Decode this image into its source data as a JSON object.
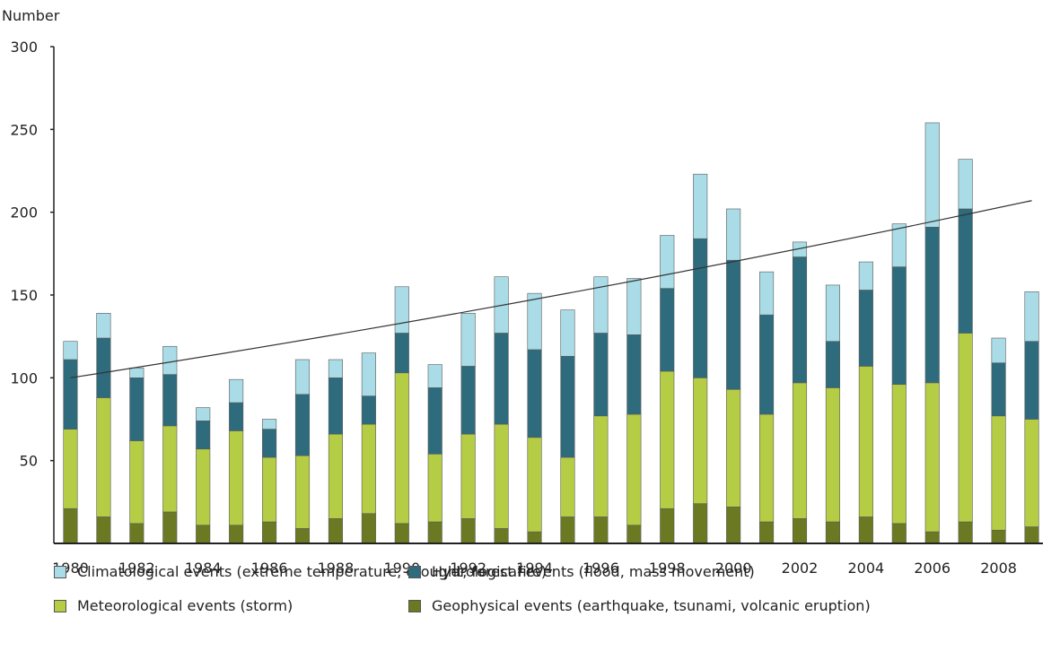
{
  "chart_data": {
    "type": "bar",
    "stacked": true,
    "ylabel": "Number",
    "ylim": [
      0,
      300
    ],
    "yticks": [
      50,
      100,
      150,
      200,
      250,
      300
    ],
    "x": [
      1980,
      1981,
      1982,
      1983,
      1984,
      1985,
      1986,
      1987,
      1988,
      1989,
      1990,
      1991,
      1992,
      1993,
      1994,
      1995,
      1996,
      1997,
      1998,
      1999,
      2000,
      2001,
      2002,
      2003,
      2004,
      2005,
      2006,
      2007,
      2008,
      2009
    ],
    "xtick_labels": [
      "1980",
      "1982",
      "1984",
      "1986",
      "1988",
      "1990",
      "1992",
      "1994",
      "1996",
      "1998",
      "2000",
      "2002",
      "2004",
      "2006",
      "2008"
    ],
    "series": [
      {
        "name": "Geophysical events (earthquake, tsunami, volcanic eruption)",
        "color": "#6b7a22",
        "values": [
          21,
          16,
          12,
          19,
          11,
          11,
          13,
          9,
          15,
          18,
          12,
          13,
          15,
          9,
          7,
          16,
          16,
          11,
          21,
          24,
          22,
          13,
          15,
          13,
          16,
          12,
          7,
          13,
          8,
          10
        ]
      },
      {
        "name": "Meteorological events (storm)",
        "color": "#b5cc45",
        "values": [
          48,
          72,
          50,
          52,
          46,
          57,
          39,
          44,
          51,
          54,
          91,
          41,
          51,
          63,
          57,
          36,
          61,
          67,
          83,
          76,
          71,
          65,
          82,
          81,
          91,
          84,
          90,
          114,
          69,
          65
        ]
      },
      {
        "name": "Hydrological events (flood, mass movement)",
        "color": "#2e6b7d",
        "values": [
          42,
          36,
          38,
          31,
          17,
          17,
          17,
          37,
          34,
          17,
          24,
          40,
          41,
          55,
          53,
          61,
          50,
          48,
          50,
          84,
          78,
          60,
          76,
          28,
          46,
          71,
          94,
          75,
          32,
          47
        ]
      },
      {
        "name": "Climatological events (extreme temperature, drought, forest fire)",
        "color": "#a9dce6",
        "values": [
          11,
          15,
          6,
          17,
          8,
          14,
          6,
          21,
          11,
          26,
          28,
          14,
          32,
          34,
          34,
          28,
          34,
          34,
          32,
          39,
          31,
          26,
          9,
          34,
          17,
          26,
          63,
          30,
          15,
          30
        ]
      }
    ],
    "trendline": {
      "x": [
        1980,
        2009
      ],
      "y": [
        100,
        207
      ]
    },
    "legend": {
      "placement": "bottom",
      "order": [
        "Climatological events (extreme temperature, drought, forest fire)",
        "Hydrological events (flood, mass movement)",
        "Meteorological events (storm)",
        "Geophysical events (earthquake, tsunami, volcanic eruption)"
      ]
    }
  }
}
